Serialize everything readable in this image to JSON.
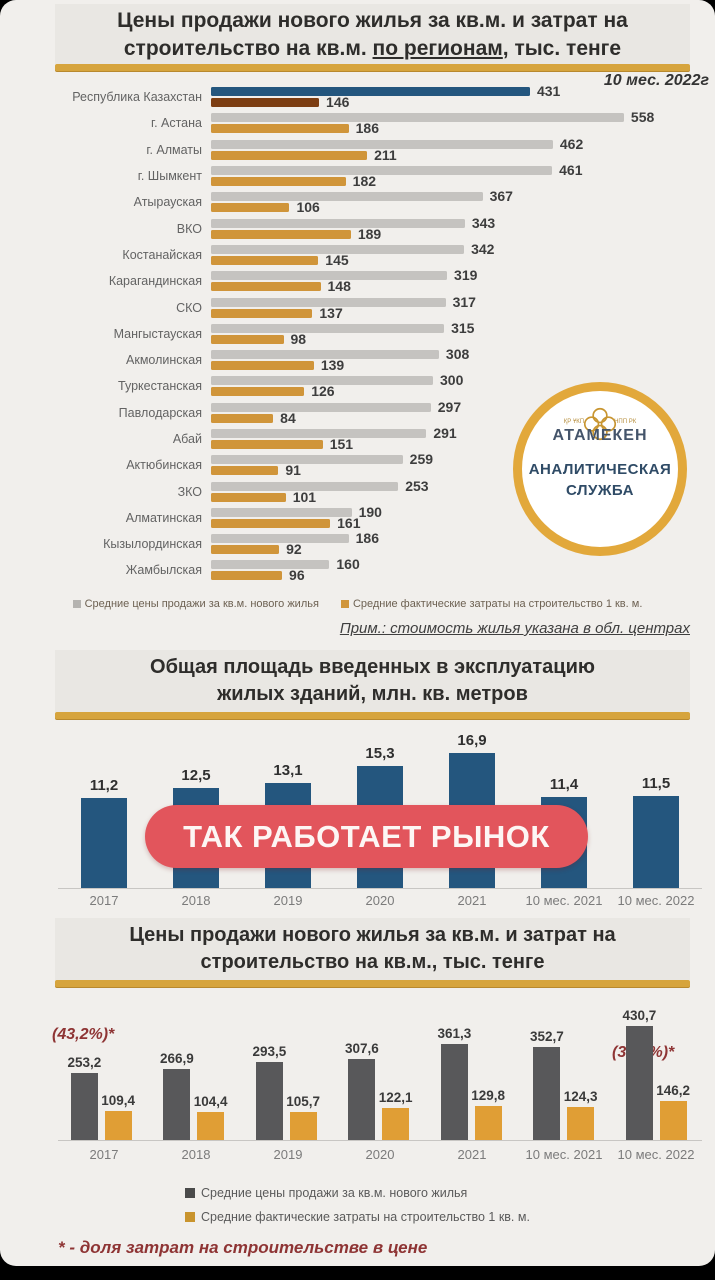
{
  "colors": {
    "page_bg": "#f1efec",
    "title_box_bg": "#e9e7e3",
    "gold_divider": "#D6A43D",
    "bar_blue": "#24567E",
    "bar_brown": "#7C3D12",
    "bar_gray": "#C5C3C0",
    "bar_gold": "#D0953A",
    "bar_dark": "#58585A",
    "bar_orange": "#E09E35",
    "badge_red": "#E2555C",
    "maroon": "#8E3434"
  },
  "section1": {
    "title": {
      "line1": "Цены продажи нового жилья за кв.м. и затрат на",
      "line2_prefix": "строительство на кв.м. ",
      "line2_underlined": "по регионам",
      "line2_suffix": ", тыс. тенге"
    },
    "period": "10 мес. 2022г",
    "legend": [
      {
        "label": "Средние цены продажи за кв.м. нового жилья",
        "color": "#B5B3B0"
      },
      {
        "label": "Средние фактические затраты на строительство 1 кв. м.",
        "color": "#D0953A"
      }
    ],
    "note": "Прим.: стоимость жилья указана в обл. центрах"
  },
  "logo": {
    "left_text": "ҚР ҰКП",
    "right_text": "НПП РК",
    "brand": "АТАМЕКЕН",
    "line1": "АНАЛИТИЧЕСКАЯ",
    "line2": "СЛУЖБА"
  },
  "section2": {
    "title": {
      "line1": "Общая площадь введенных в эксплуатацию",
      "line2": "жилых зданий, млн. кв. метров"
    }
  },
  "badge": {
    "text": "ТАК РАБОТАЕТ РЫНОК"
  },
  "section3": {
    "title": {
      "line1": "Цены продажи нового жилья за кв.м. и затрат на",
      "line2": "строительство на кв.м., тыс. тенге"
    },
    "annotation_left": "(43,2%)*",
    "annotation_right": "(33,9%)*",
    "legend": [
      {
        "label": "Средние цены продажи за кв.м.  нового жилья",
        "color": "#4A4A4A"
      },
      {
        "label": "Средние фактические затраты на строительство 1 кв. м.",
        "color": "#C9942D"
      }
    ],
    "footnote": "* - доля затрат на строительстве в цене"
  },
  "chart_data": [
    {
      "type": "bar",
      "orientation": "horizontal",
      "title": "Цены продажи нового жилья за кв.м. и затрат на строительство на кв.м. по регионам, тыс. тенге",
      "period": "10 мес. 2022г",
      "categories": [
        "Республика Казахстан",
        "г. Астана",
        "г. Алматы",
        "г. Шымкент",
        "Атырауская",
        "ВКО",
        "Костанайская",
        "Карагандинская",
        "СКО",
        "Мангыстауская",
        "Акмолинская",
        "Туркестанская",
        "Павлодарская",
        "Абай",
        "Актюбинская",
        "ЗКО",
        "Алматинская",
        "Кызылординская",
        "Жамбылская"
      ],
      "series": [
        {
          "name": "Средние цены продажи за кв.м. нового жилья",
          "values": [
            431,
            558,
            462,
            461,
            367,
            343,
            342,
            319,
            317,
            315,
            308,
            300,
            297,
            291,
            259,
            253,
            190,
            186,
            160
          ]
        },
        {
          "name": "Средние фактические затраты на строительство 1 кв. м.",
          "values": [
            146,
            186,
            211,
            182,
            106,
            189,
            145,
            148,
            137,
            98,
            139,
            126,
            84,
            151,
            91,
            101,
            161,
            92,
            96
          ]
        }
      ],
      "highlight_category": "Республика Казахстан",
      "xlim": [
        0,
        600
      ],
      "grid": false,
      "note": "Прим.: стоимость жилья указана в обл. центрах"
    },
    {
      "type": "bar",
      "orientation": "vertical",
      "title": "Общая площадь введенных в эксплуатацию жилых зданий, млн. кв. метров",
      "categories": [
        "2017",
        "2018",
        "2019",
        "2020",
        "2021",
        "10 мес. 2021",
        "10 мес. 2022"
      ],
      "values": [
        11.2,
        12.5,
        13.1,
        15.3,
        16.9,
        11.4,
        11.5
      ],
      "ylim": [
        0,
        18
      ],
      "grid": false
    },
    {
      "type": "bar",
      "orientation": "vertical",
      "title": "Цены продажи нового жилья за кв.м. и затрат на строительство на кв.м., тыс. тенге",
      "categories": [
        "2017",
        "2018",
        "2019",
        "2020",
        "2021",
        "10 мес. 2021",
        "10 мес. 2022"
      ],
      "series": [
        {
          "name": "Средние цены продажи за кв.м.  нового жилья",
          "values": [
            253.2,
            266.9,
            293.5,
            307.6,
            361.3,
            352.7,
            430.7
          ]
        },
        {
          "name": "Средние фактические затраты на строительство 1 кв. м.",
          "values": [
            109.4,
            104.4,
            105.7,
            122.1,
            129.8,
            124.3,
            146.2
          ]
        }
      ],
      "annotations": [
        "(43,2%)*",
        "(33,9%)*"
      ],
      "ylim": [
        0,
        460
      ],
      "grid": false,
      "legend_position": "bottom"
    }
  ]
}
